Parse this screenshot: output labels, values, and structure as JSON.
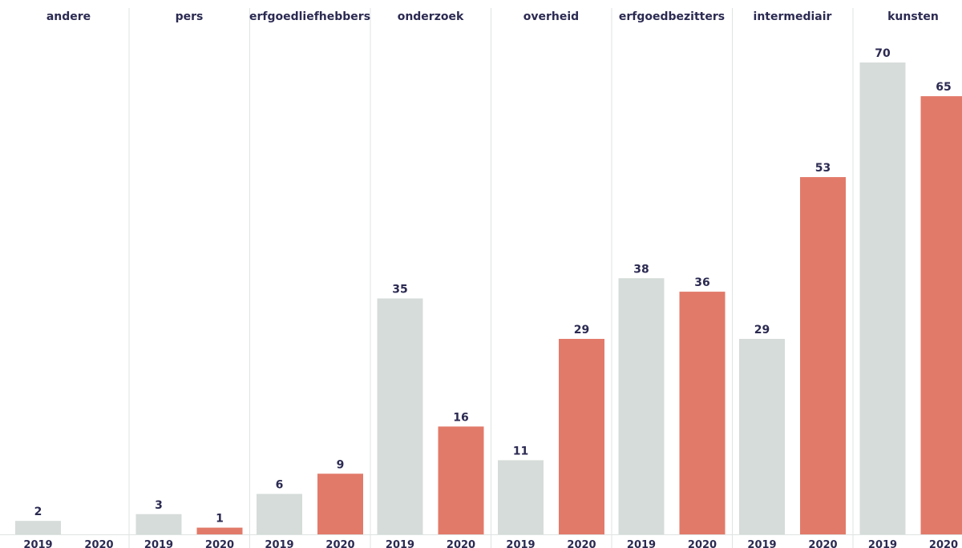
{
  "chart_data": {
    "type": "bar",
    "groups": [
      "andere",
      "pers",
      "erfgoedliefhebbers",
      "onderzoek",
      "overheid",
      "erfgoedbezitters",
      "intermediair",
      "kunsten"
    ],
    "series": [
      {
        "name": "2019",
        "values": [
          2,
          3,
          6,
          35,
          11,
          38,
          29,
          70
        ]
      },
      {
        "name": "2020",
        "values": [
          0,
          1,
          9,
          16,
          29,
          36,
          53,
          65
        ]
      }
    ],
    "ylim": [
      0,
      70
    ],
    "grid": false,
    "legend": "none",
    "colors": {
      "2019": "#d5dcd9",
      "2020": "#e27a6a",
      "divider": "#dfe3e2",
      "text": "#2b2a52"
    }
  }
}
